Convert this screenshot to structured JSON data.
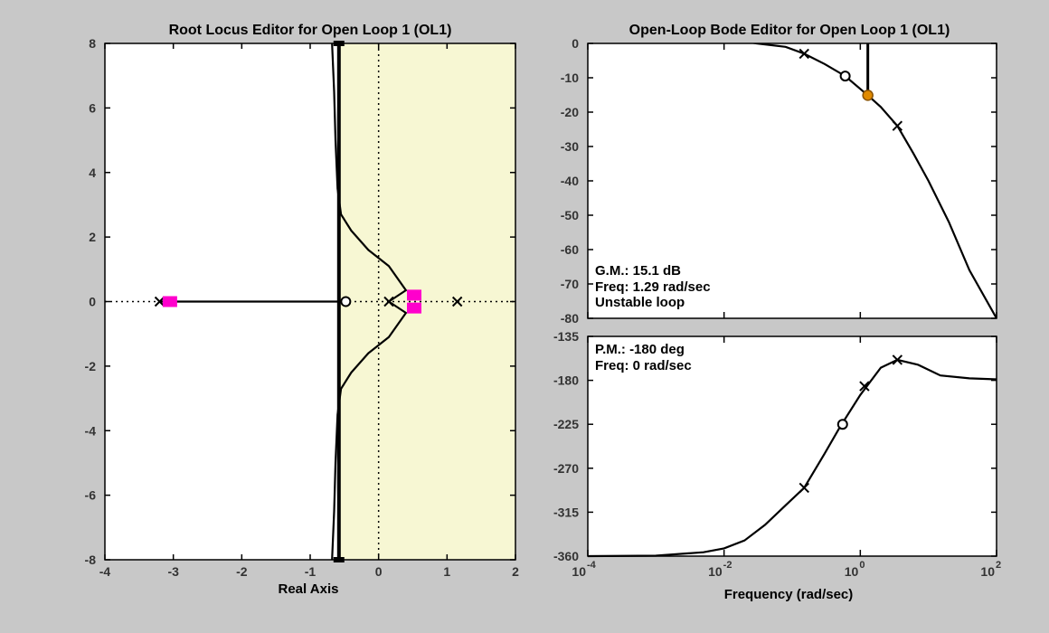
{
  "chart_data": [
    {
      "type": "root_locus",
      "title": "Root Locus Editor for Open Loop 1 (OL1)",
      "xlabel": "Real Axis",
      "ylabel": "",
      "xlim": [
        -4,
        2
      ],
      "ylim": [
        -8,
        8
      ],
      "x_ticks": [
        "-4",
        "-3",
        "-2",
        "-1",
        "0",
        "1",
        "2"
      ],
      "y_ticks": [
        "8",
        "6",
        "4",
        "2",
        "0",
        "-2",
        "-4",
        "-6",
        "-8"
      ],
      "unstable_region": {
        "from_real": -0.6,
        "color": "#f7f7d3"
      },
      "poles": [
        [
          -3.2,
          0
        ],
        [
          0.15,
          0
        ],
        [
          1.15,
          0
        ]
      ],
      "zeros": [
        [
          -0.48,
          0
        ]
      ],
      "closed_loop_poles": [
        [
          -3.05,
          0
        ],
        [
          0.52,
          0.2
        ],
        [
          0.52,
          -0.2
        ],
        [
          -0.58,
          8
        ],
        [
          -0.58,
          -8
        ]
      ],
      "branches": [
        {
          "name": "",
          "points": [
            [
              -3.2,
              0
            ],
            [
              -0.48,
              0
            ]
          ]
        },
        {
          "name": "",
          "points": [
            [
              0.15,
              0
            ],
            [
              0.4,
              0.35
            ],
            [
              0.15,
              1.1
            ],
            [
              -0.15,
              1.6
            ],
            [
              -0.4,
              2.2
            ],
            [
              -0.55,
              2.7
            ],
            [
              -0.6,
              3.5
            ],
            [
              -0.63,
              5
            ],
            [
              -0.65,
              6.5
            ],
            [
              -0.68,
              8
            ]
          ]
        },
        {
          "name": "",
          "points": [
            [
              0.15,
              0
            ],
            [
              0.4,
              -0.35
            ],
            [
              0.15,
              -1.1
            ],
            [
              -0.15,
              -1.6
            ],
            [
              -0.4,
              -2.2
            ],
            [
              -0.55,
              -2.7
            ],
            [
              -0.6,
              -3.5
            ],
            [
              -0.63,
              -5
            ],
            [
              -0.65,
              -6.5
            ],
            [
              -0.68,
              -8
            ]
          ]
        },
        {
          "name": "",
          "points": [
            [
              -0.58,
              -8
            ],
            [
              -0.58,
              8
            ]
          ]
        }
      ],
      "grid": false
    },
    {
      "type": "bode",
      "title": "Open-Loop Bode Editor for Open Loop 1 (OL1)",
      "xlabel": "Frequency (rad/sec)",
      "x_ticks": [
        {
          "base": "10",
          "exp": "-4"
        },
        {
          "base": "10",
          "exp": "-2"
        },
        {
          "base": "10",
          "exp": "0"
        },
        {
          "base": "10",
          "exp": "2"
        }
      ],
      "x_scale": "log",
      "xlim": [
        0.0001,
        100
      ],
      "magnitude": {
        "ylim": [
          -80,
          0
        ],
        "y_ticks": [
          "0",
          "-10",
          "-20",
          "-30",
          "-40",
          "-50",
          "-60",
          "-70",
          "-80"
        ],
        "points": [
          [
            0.0001,
            5
          ],
          [
            0.003,
            3
          ],
          [
            0.03,
            0
          ],
          [
            0.08,
            -1
          ],
          [
            0.15,
            -3
          ],
          [
            0.3,
            -6
          ],
          [
            0.6,
            -9.5
          ],
          [
            1.29,
            -15.1
          ],
          [
            2,
            -18.5
          ],
          [
            3.5,
            -24
          ],
          [
            6,
            -32
          ],
          [
            10,
            -40
          ],
          [
            20,
            -52
          ],
          [
            40,
            -66
          ],
          [
            100,
            -80
          ]
        ],
        "poles": [
          [
            0.15,
            -3
          ],
          [
            3.5,
            -24
          ]
        ],
        "zeros": [
          [
            0.6,
            -9.5
          ]
        ],
        "gain_margin_marker": [
          1.29,
          -15.1
        ],
        "gm_line_x": 1.29
      },
      "phase": {
        "ylim": [
          -360,
          -135
        ],
        "y_ticks": [
          "-135",
          "-180",
          "-225",
          "-270",
          "-315",
          "-360"
        ],
        "points": [
          [
            0.0001,
            -360
          ],
          [
            0.001,
            -359.5
          ],
          [
            0.005,
            -356
          ],
          [
            0.01,
            -352
          ],
          [
            0.02,
            -344
          ],
          [
            0.04,
            -328
          ],
          [
            0.08,
            -308
          ],
          [
            0.15,
            -290
          ],
          [
            0.3,
            -255
          ],
          [
            0.5,
            -228
          ],
          [
            1,
            -195
          ],
          [
            2,
            -167
          ],
          [
            3.5,
            -159
          ],
          [
            7,
            -164
          ],
          [
            15,
            -175
          ],
          [
            40,
            -178
          ],
          [
            100,
            -179
          ]
        ],
        "poles": [
          [
            0.15,
            -290
          ],
          [
            1.15,
            -186
          ],
          [
            3.5,
            -159
          ]
        ],
        "zeros": [
          [
            0.55,
            -225
          ]
        ]
      },
      "annotations": {
        "gm_label": "G.M.: 15.1 dB",
        "gm_freq": "Freq: 1.29 rad/sec",
        "stability": "Unstable loop",
        "pm_label": "P.M.: -180 deg",
        "pm_freq": "Freq: 0 rad/sec"
      },
      "grid": false
    }
  ],
  "colors": {
    "background": "#c8c8c8",
    "plot": "#ffffff",
    "unstable_region": "#f7f7d3",
    "closed_loop_marker": "#ff00cc",
    "gm_marker": "#e08a00",
    "trace": "#000000"
  }
}
